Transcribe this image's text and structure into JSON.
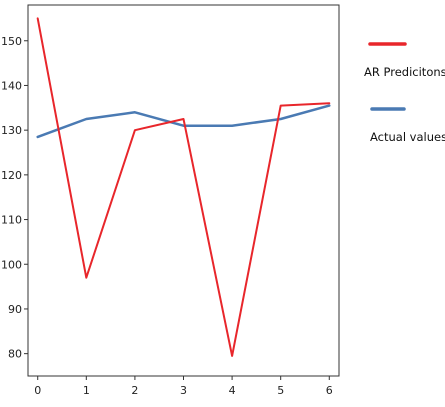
{
  "chart_data": {
    "type": "line",
    "title": "",
    "xlabel": "",
    "ylabel": "",
    "x": [
      0,
      1,
      2,
      3,
      4,
      5,
      6
    ],
    "xlim": [
      -0.2,
      6.2
    ],
    "ylim": [
      75,
      158
    ],
    "xticks": [
      0,
      1,
      2,
      3,
      4,
      5,
      6
    ],
    "yticks": [
      80,
      90,
      100,
      110,
      120,
      130,
      140,
      150
    ],
    "grid": false,
    "legend_position": "right, outside plot",
    "series": [
      {
        "name": "AR Predicitons",
        "color": "#e8262b",
        "values": [
          155,
          97,
          130,
          132.5,
          79.5,
          135.5,
          136
        ]
      },
      {
        "name": "Actual values",
        "color": "#4a7ab3",
        "values": [
          128.5,
          132.5,
          134,
          131,
          131,
          132.5,
          135.5
        ]
      }
    ]
  }
}
